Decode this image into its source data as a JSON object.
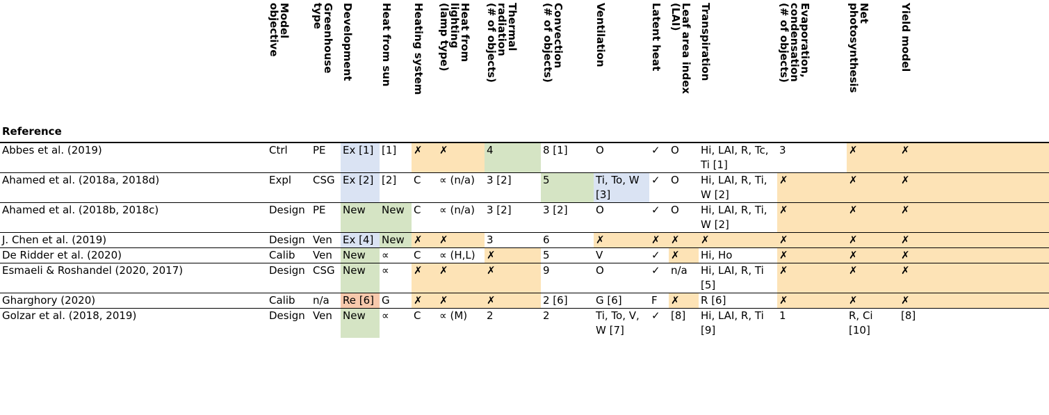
{
  "colors": {
    "blue": "#dae3f3",
    "green": "#d5e4c4",
    "orange": "#fde3b6",
    "red": "#f7c9ac"
  },
  "headers": {
    "reference": "Reference",
    "model_objective": "Model\nobjective",
    "greenhouse_type": "Greenhouse\ntype",
    "development": "Development",
    "heat_from_sun": "Heat from sun",
    "heating_system": "Heating system",
    "heat_from_lighting": "Heat from\nlighting\n(lamp type)",
    "thermal_radiation": "Thermal\nradiation\n(# of objects)",
    "convection": "Convection\n(# of objects)",
    "ventilation": "Ventilation",
    "latent_heat": "Latent heat",
    "leaf_area_index": "Leaf area index\n(LAI)",
    "transpiration": "Transpiration",
    "evaporation": "Evaporation,\ncondensation\n(# of objects)",
    "net_photosynthesis": "Net\nphotosynthesis",
    "yield_model": "Yield model"
  },
  "rows": [
    {
      "ref": "Abbes et al. (2019)",
      "obj": "Ctrl",
      "type": "PE",
      "dev": "Ex [1]",
      "sun": "[1]",
      "heat": "✗",
      "light": "✗",
      "rad": "4",
      "conv": "8 [1]",
      "vent": "O",
      "latent": "✓",
      "lai": "O",
      "transp": "Hi, LAI, R, Tc, Ti  [1]",
      "evap": "3",
      "photo": "✗",
      "yield": "✗"
    },
    {
      "ref": "Ahamed et al. (2018a, 2018d)",
      "obj": "Expl",
      "type": "CSG",
      "dev": "Ex [2]",
      "sun": "[2]",
      "heat": "C",
      "light": "∝ (n/a)",
      "rad": "3 [2]",
      "conv": "5",
      "vent": "Ti, To, W [3]",
      "latent": "✓",
      "lai": "O",
      "transp": "Hi, LAI, R, Ti, W [2]",
      "evap": "✗",
      "photo": "✗",
      "yield": "✗"
    },
    {
      "ref": "Ahamed et al. (2018b, 2018c)",
      "obj": "Design",
      "type": "PE",
      "dev": "New",
      "sun": "New",
      "heat": "C",
      "light": "∝ (n/a)",
      "rad": "3 [2]",
      "conv": "3 [2]",
      "vent": "O",
      "latent": "✓",
      "lai": "O",
      "transp": "Hi, LAI, R, Ti, W [2]",
      "evap": "✗",
      "photo": "✗",
      "yield": "✗"
    },
    {
      "ref": "J. Chen et al. (2019)",
      "obj": "Design",
      "type": "Ven",
      "dev": "Ex [4]",
      "sun": "New",
      "heat": "✗",
      "light": "✗",
      "rad": "3",
      "conv": "6",
      "vent": "✗",
      "latent": "✗",
      "lai": "✗",
      "transp": "✗",
      "evap": "✗",
      "photo": "✗",
      "yield": "✗"
    },
    {
      "ref": "De Ridder et al. (2020)",
      "obj": "Calib",
      "type": "Ven",
      "dev": "New",
      "sun": "∝",
      "heat": "C",
      "light": "∝ (H,L)",
      "rad": "✗",
      "conv": "5",
      "vent": "V",
      "latent": "✓",
      "lai": "✗",
      "transp": "Hi, Ho",
      "evap": "✗",
      "photo": "✗",
      "yield": "✗"
    },
    {
      "ref": "Esmaeli & Roshandel (2020, 2017)",
      "obj": "Design",
      "type": "CSG",
      "dev": "New",
      "sun": "∝",
      "heat": "✗",
      "light": "✗",
      "rad": "✗",
      "conv": "9",
      "vent": "O",
      "latent": "✓",
      "lai": "n/a",
      "transp": "Hi, LAI, R, Ti [5]",
      "evap": "✗",
      "photo": "✗",
      "yield": "✗"
    },
    {
      "ref": "Gharghory (2020)",
      "obj": "Calib",
      "type": "n/a",
      "dev": "Re [6]",
      "sun": "G",
      "heat": "✗",
      "light": "✗",
      "rad": "✗",
      "conv": "2 [6]",
      "vent": "G [6]",
      "latent": "F",
      "lai": "✗",
      "transp": "R [6]",
      "evap": "✗",
      "photo": "✗",
      "yield": "✗"
    },
    {
      "ref": "Golzar et al. (2018, 2019)",
      "obj": "Design",
      "type": "Ven",
      "dev": "New",
      "sun": "∝",
      "heat": "C",
      "light": "∝ (M)",
      "rad": "2",
      "conv": "2",
      "vent": "Ti, To, V, W [7]",
      "latent": "✓",
      "lai": "[8]",
      "transp": "Hi, LAI, R, Ti [9]",
      "evap": "1",
      "photo": "R, Ci [10]",
      "yield": "[8]"
    }
  ]
}
